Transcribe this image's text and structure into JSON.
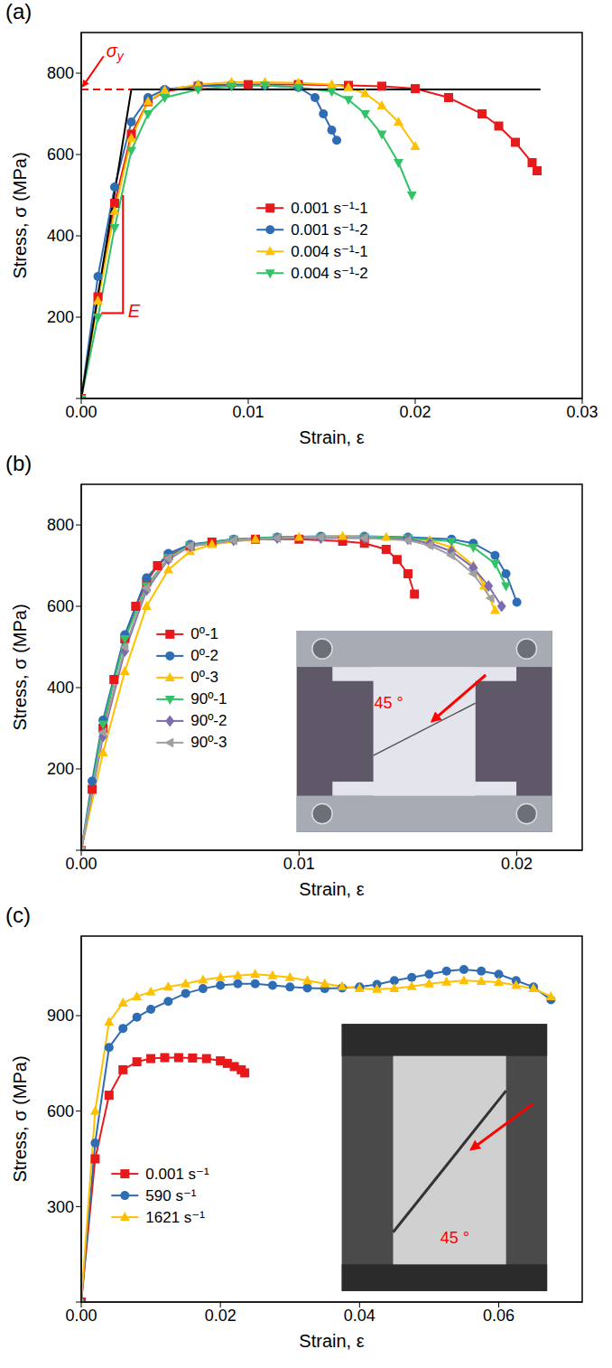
{
  "chart_data": [
    {
      "type": "line",
      "panel": "(a)",
      "x_label": "Strain, ε",
      "y_label": "Stress, σ (MPa)",
      "xlim": [
        0,
        0.03
      ],
      "xticks": [
        {
          "value": 0,
          "label": "0.00"
        },
        {
          "value": 0.01,
          "label": "0.01"
        },
        {
          "value": 0.02,
          "label": "0.02"
        },
        {
          "value": 0.03,
          "label": "0.03"
        }
      ],
      "ylim": [
        0,
        900
      ],
      "yticks": [
        0,
        200,
        400,
        600,
        800
      ],
      "legend": "center",
      "series": [
        {
          "name": "0.001 s⁻¹-1",
          "color": "#e8191b",
          "marker": "square",
          "x": [
            0,
            0.001,
            0.002,
            0.003,
            0.004,
            0.005,
            0.007,
            0.01,
            0.013,
            0.016,
            0.018,
            0.02,
            0.022,
            0.024,
            0.025,
            0.026,
            0.027,
            0.0273
          ],
          "values": [
            0,
            250,
            480,
            650,
            730,
            755,
            768,
            772,
            772,
            770,
            768,
            762,
            740,
            700,
            670,
            630,
            580,
            560
          ]
        },
        {
          "name": "0.001 s⁻¹-2",
          "color": "#2e6db4",
          "marker": "circle",
          "x": [
            0,
            0.001,
            0.002,
            0.003,
            0.004,
            0.005,
            0.007,
            0.009,
            0.011,
            0.013,
            0.014,
            0.0145,
            0.015,
            0.0153
          ],
          "values": [
            0,
            300,
            520,
            680,
            740,
            760,
            770,
            772,
            770,
            765,
            740,
            700,
            660,
            635
          ]
        },
        {
          "name": "0.004 s⁻¹-1",
          "color": "#ffc000",
          "marker": "triangle-up",
          "x": [
            0,
            0.001,
            0.002,
            0.003,
            0.004,
            0.005,
            0.007,
            0.009,
            0.011,
            0.013,
            0.015,
            0.016,
            0.017,
            0.018,
            0.019,
            0.02
          ],
          "values": [
            0,
            240,
            460,
            640,
            730,
            758,
            772,
            778,
            778,
            776,
            772,
            765,
            750,
            720,
            680,
            620
          ]
        },
        {
          "name": "0.004 s⁻¹-2",
          "color": "#33c266",
          "marker": "triangle-down",
          "x": [
            0,
            0.001,
            0.002,
            0.003,
            0.004,
            0.005,
            0.007,
            0.009,
            0.011,
            0.013,
            0.015,
            0.016,
            0.017,
            0.018,
            0.019,
            0.0198
          ],
          "values": [
            0,
            200,
            420,
            610,
            700,
            740,
            760,
            768,
            770,
            765,
            755,
            735,
            700,
            650,
            580,
            500
          ]
        },
        {
          "color": "#000000",
          "marker": "none",
          "x": [
            0,
            0.003,
            0.0275
          ],
          "values": [
            0,
            760,
            760
          ]
        },
        {
          "color": "#ff0000",
          "marker": "none",
          "line_style": "dashed",
          "x": [
            0,
            0.003
          ],
          "values": [
            760,
            760
          ]
        },
        {
          "color": "#ff0000",
          "marker": "none",
          "x": [
            0.0012,
            0.0025,
            0.0025
          ],
          "values": [
            210,
            210,
            500
          ]
        }
      ],
      "annotations": [
        {
          "text": "σ",
          "subscript": "y",
          "x": 0.0015,
          "y": 855,
          "color": "#ff0000",
          "arrow_to": [
            0.0001,
            768
          ]
        },
        {
          "text": "E",
          "x": 0.0028,
          "y": 215,
          "color": "#ff0000"
        }
      ]
    },
    {
      "type": "line",
      "panel": "(b)",
      "x_label": "Strain, ε",
      "y_label": "Stress, σ (MPa)",
      "xlim": [
        0,
        0.023
      ],
      "xticks": [
        {
          "value": 0,
          "label": "0.00"
        },
        {
          "value": 0.01,
          "label": "0.01"
        },
        {
          "value": 0.02,
          "label": "0.02"
        }
      ],
      "ylim": [
        0,
        900
      ],
      "yticks": [
        0,
        200,
        400,
        600,
        800
      ],
      "legend": "left",
      "series": [
        {
          "name": "0º-1",
          "color": "#e8191b",
          "marker": "square",
          "x": [
            0,
            0.0005,
            0.001,
            0.0015,
            0.002,
            0.0025,
            0.003,
            0.0035,
            0.004,
            0.005,
            0.006,
            0.008,
            0.01,
            0.012,
            0.013,
            0.014,
            0.0145,
            0.015,
            0.0153
          ],
          "values": [
            0,
            150,
            300,
            420,
            520,
            600,
            660,
            700,
            725,
            748,
            758,
            765,
            765,
            760,
            755,
            740,
            715,
            680,
            630
          ]
        },
        {
          "name": "0º-2",
          "color": "#2e6db4",
          "marker": "circle",
          "x": [
            0,
            0.0005,
            0.001,
            0.002,
            0.003,
            0.004,
            0.005,
            0.007,
            0.009,
            0.011,
            0.013,
            0.015,
            0.017,
            0.018,
            0.019,
            0.0195,
            0.02
          ],
          "values": [
            0,
            170,
            320,
            530,
            670,
            730,
            752,
            765,
            770,
            772,
            772,
            770,
            765,
            755,
            725,
            680,
            610
          ]
        },
        {
          "name": "0º-3",
          "color": "#ffc000",
          "marker": "triangle-up",
          "x": [
            0,
            0.001,
            0.002,
            0.003,
            0.004,
            0.005,
            0.006,
            0.008,
            0.01,
            0.012,
            0.014,
            0.016,
            0.017,
            0.018,
            0.0185,
            0.019
          ],
          "values": [
            0,
            240,
            440,
            600,
            690,
            735,
            752,
            765,
            770,
            772,
            770,
            762,
            745,
            700,
            650,
            590
          ]
        },
        {
          "name": "90º-1",
          "color": "#33c266",
          "marker": "triangle-down",
          "x": [
            0,
            0.001,
            0.002,
            0.003,
            0.004,
            0.005,
            0.007,
            0.009,
            0.011,
            0.013,
            0.015,
            0.017,
            0.018,
            0.019,
            0.0195
          ],
          "values": [
            0,
            310,
            520,
            650,
            720,
            750,
            765,
            770,
            770,
            770,
            768,
            760,
            745,
            705,
            650
          ]
        },
        {
          "name": "90º-2",
          "color": "#7e6bb0",
          "marker": "diamond",
          "x": [
            0,
            0.001,
            0.002,
            0.003,
            0.004,
            0.005,
            0.007,
            0.009,
            0.011,
            0.013,
            0.015,
            0.016,
            0.017,
            0.018,
            0.0187,
            0.0193
          ],
          "values": [
            0,
            280,
            490,
            640,
            715,
            748,
            762,
            768,
            768,
            768,
            765,
            755,
            735,
            695,
            650,
            600
          ]
        },
        {
          "name": "90º-3",
          "color": "#a0a0a0",
          "marker": "triangle-left",
          "x": [
            0,
            0.001,
            0.002,
            0.003,
            0.004,
            0.005,
            0.007,
            0.009,
            0.011,
            0.013,
            0.015,
            0.016,
            0.017,
            0.018,
            0.0188
          ],
          "values": [
            0,
            290,
            500,
            645,
            718,
            748,
            762,
            768,
            770,
            768,
            762,
            750,
            725,
            680,
            620
          ]
        }
      ],
      "inset_text": "45 °"
    },
    {
      "type": "line",
      "panel": "(c)",
      "x_label": "Strain, ε",
      "y_label": "Stress, σ (MPa)",
      "xlim": [
        0,
        0.072
      ],
      "xticks": [
        {
          "value": 0,
          "label": "0.00"
        },
        {
          "value": 0.02,
          "label": "0.02"
        },
        {
          "value": 0.04,
          "label": "0.04"
        },
        {
          "value": 0.06,
          "label": "0.06"
        }
      ],
      "ylim": [
        0,
        1150
      ],
      "yticks": [
        0,
        300,
        600,
        900
      ],
      "legend": "lower left",
      "series": [
        {
          "name": "0.001 s⁻¹",
          "color": "#e8191b",
          "marker": "square",
          "x": [
            0,
            0.002,
            0.004,
            0.006,
            0.008,
            0.01,
            0.012,
            0.014,
            0.016,
            0.018,
            0.02,
            0.021,
            0.022,
            0.023,
            0.0235
          ],
          "values": [
            0,
            450,
            650,
            730,
            755,
            765,
            768,
            768,
            767,
            765,
            758,
            750,
            740,
            730,
            720
          ]
        },
        {
          "name": "590 s⁻¹",
          "color": "#2e6db4",
          "marker": "circle",
          "x": [
            0,
            0.002,
            0.004,
            0.006,
            0.008,
            0.01,
            0.0125,
            0.015,
            0.0175,
            0.02,
            0.0225,
            0.025,
            0.0275,
            0.03,
            0.0325,
            0.035,
            0.0375,
            0.04,
            0.0425,
            0.045,
            0.0475,
            0.05,
            0.0525,
            0.055,
            0.0575,
            0.06,
            0.0625,
            0.065,
            0.0675
          ],
          "values": [
            0,
            500,
            800,
            860,
            895,
            920,
            945,
            970,
            985,
            995,
            1000,
            1000,
            995,
            990,
            987,
            985,
            987,
            990,
            998,
            1010,
            1020,
            1030,
            1040,
            1045,
            1040,
            1030,
            1010,
            990,
            950
          ]
        },
        {
          "name": "1621 s⁻¹",
          "color": "#ffc000",
          "marker": "triangle-up",
          "x": [
            0,
            0.002,
            0.004,
            0.006,
            0.008,
            0.01,
            0.0125,
            0.015,
            0.0175,
            0.02,
            0.0225,
            0.025,
            0.0275,
            0.03,
            0.0325,
            0.035,
            0.0375,
            0.04,
            0.0425,
            0.045,
            0.0475,
            0.05,
            0.0525,
            0.055,
            0.0575,
            0.06,
            0.0625,
            0.065,
            0.0675
          ],
          "values": [
            0,
            600,
            880,
            940,
            960,
            975,
            990,
            1000,
            1012,
            1020,
            1026,
            1030,
            1026,
            1020,
            1010,
            1000,
            992,
            985,
            983,
            985,
            992,
            1000,
            1006,
            1010,
            1008,
            1005,
            995,
            985,
            960
          ]
        }
      ],
      "inset_text": "45 °"
    }
  ]
}
